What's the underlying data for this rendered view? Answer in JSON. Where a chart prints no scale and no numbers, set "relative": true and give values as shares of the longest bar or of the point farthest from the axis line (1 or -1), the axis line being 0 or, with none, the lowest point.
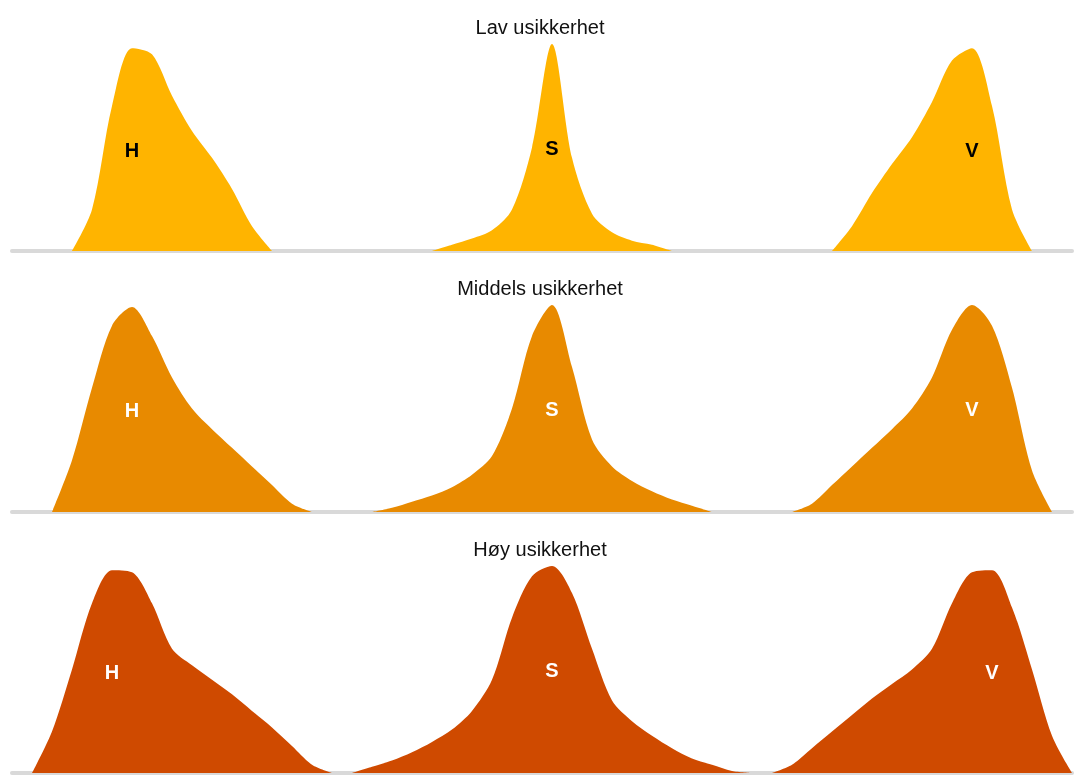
{
  "chart_data": [
    {
      "type": "area",
      "title": "Lav usikkerhet",
      "relative": true,
      "categories": [
        null,
        null,
        null,
        null,
        null,
        null,
        null,
        null,
        null,
        null,
        null,
        null,
        null,
        null,
        null,
        null,
        null,
        null,
        null,
        null,
        null,
        null,
        null,
        null,
        null,
        null,
        null,
        null,
        null,
        null,
        null,
        null,
        null,
        null,
        null,
        null,
        null,
        null,
        null,
        null,
        null,
        null,
        null,
        null,
        null,
        null,
        null,
        null,
        null,
        null,
        null,
        null,
        null,
        null
      ],
      "series": [
        {
          "name": "H",
          "color": "#ffb400",
          "values": [
            null,
            null,
            null,
            0,
            0.2,
            0.7,
            0.98,
            0.95,
            0.75,
            0.58,
            0.45,
            0.3,
            0.12,
            0,
            null,
            null,
            null,
            null,
            null,
            null,
            null,
            null,
            null,
            null,
            null,
            null,
            null,
            null,
            null,
            null,
            null,
            null,
            null,
            null,
            null,
            null,
            null,
            null,
            null,
            null,
            null,
            null,
            null,
            null,
            null,
            null,
            null,
            null,
            null,
            null,
            null,
            null,
            null,
            null
          ]
        },
        {
          "name": "S",
          "color": "#ffb400",
          "values": [
            null,
            null,
            null,
            null,
            null,
            null,
            null,
            null,
            null,
            null,
            null,
            null,
            null,
            null,
            null,
            null,
            null,
            null,
            null,
            null,
            null,
            0,
            0.03,
            0.06,
            0.1,
            0.2,
            0.5,
            1.0,
            0.45,
            0.18,
            0.09,
            0.05,
            0.03,
            0,
            null,
            null,
            null,
            null,
            null,
            null,
            null,
            null,
            null,
            null,
            null,
            null,
            null,
            null,
            null,
            null,
            null,
            null,
            null,
            null
          ]
        },
        {
          "name": "V",
          "color": "#ffb400",
          "values": [
            null,
            null,
            null,
            null,
            null,
            null,
            null,
            null,
            null,
            null,
            null,
            null,
            null,
            null,
            null,
            null,
            null,
            null,
            null,
            null,
            null,
            null,
            null,
            null,
            null,
            null,
            null,
            null,
            null,
            null,
            null,
            null,
            null,
            null,
            null,
            null,
            null,
            null,
            null,
            null,
            null,
            0,
            0.12,
            0.28,
            0.42,
            0.55,
            0.72,
            0.92,
            0.98,
            0.7,
            0.2,
            0,
            null,
            null
          ]
        }
      ]
    },
    {
      "type": "area",
      "title": "Middels usikkerhet",
      "relative": true,
      "categories": [
        null,
        null,
        null,
        null,
        null,
        null,
        null,
        null,
        null,
        null,
        null,
        null,
        null,
        null,
        null,
        null,
        null,
        null,
        null,
        null,
        null,
        null,
        null,
        null,
        null,
        null,
        null,
        null,
        null,
        null,
        null,
        null,
        null,
        null,
        null,
        null,
        null,
        null,
        null,
        null,
        null,
        null,
        null,
        null,
        null,
        null,
        null,
        null,
        null,
        null,
        null,
        null,
        null,
        null
      ],
      "series": [
        {
          "name": "H",
          "color": "#e88a00",
          "values": [
            null,
            null,
            0,
            0.25,
            0.6,
            0.9,
            0.99,
            0.85,
            0.65,
            0.5,
            0.4,
            0.31,
            0.22,
            0.13,
            0.04,
            0,
            null,
            null,
            null,
            null,
            null,
            null,
            null,
            null,
            null,
            null,
            null,
            null,
            null,
            null,
            null,
            null,
            null,
            null,
            null,
            null,
            null,
            null,
            null,
            null,
            null,
            null,
            null,
            null,
            null,
            null,
            null,
            null,
            null,
            null,
            null,
            null,
            null,
            null
          ]
        },
        {
          "name": "S",
          "color": "#e88a00",
          "values": [
            null,
            null,
            null,
            null,
            null,
            null,
            null,
            null,
            null,
            null,
            null,
            null,
            null,
            null,
            null,
            null,
            null,
            null,
            0,
            0.02,
            0.05,
            0.08,
            0.12,
            0.18,
            0.27,
            0.5,
            0.85,
            1.0,
            0.7,
            0.35,
            0.22,
            0.15,
            0.1,
            0.06,
            0.03,
            0,
            null,
            null,
            null,
            null,
            null,
            null,
            null,
            null,
            null,
            null,
            null,
            null,
            null,
            null,
            null,
            null,
            null,
            null
          ]
        },
        {
          "name": "V",
          "color": "#e88a00",
          "values": [
            null,
            null,
            null,
            null,
            null,
            null,
            null,
            null,
            null,
            null,
            null,
            null,
            null,
            null,
            null,
            null,
            null,
            null,
            null,
            null,
            null,
            null,
            null,
            null,
            null,
            null,
            null,
            null,
            null,
            null,
            null,
            null,
            null,
            null,
            null,
            null,
            null,
            null,
            null,
            0,
            0.04,
            0.13,
            0.22,
            0.31,
            0.4,
            0.5,
            0.65,
            0.88,
            1.0,
            0.9,
            0.6,
            0.2,
            0,
            null
          ]
        }
      ]
    },
    {
      "type": "area",
      "title": "Høy usikkerhet",
      "relative": true,
      "categories": [
        null,
        null,
        null,
        null,
        null,
        null,
        null,
        null,
        null,
        null,
        null,
        null,
        null,
        null,
        null,
        null,
        null,
        null,
        null,
        null,
        null,
        null,
        null,
        null,
        null,
        null,
        null,
        null,
        null,
        null,
        null,
        null,
        null,
        null,
        null,
        null,
        null,
        null,
        null,
        null,
        null,
        null,
        null,
        null,
        null,
        null,
        null,
        null,
        null,
        null,
        null,
        null,
        null,
        null
      ],
      "series": [
        {
          "name": "H",
          "color": "#cf4a00",
          "values": [
            null,
            0,
            0.2,
            0.5,
            0.82,
            0.98,
            0.97,
            0.82,
            0.6,
            0.52,
            0.45,
            0.38,
            0.3,
            0.22,
            0.13,
            0.04,
            0,
            null,
            null,
            null,
            null,
            null,
            null,
            null,
            null,
            null,
            null,
            null,
            null,
            null,
            null,
            null,
            null,
            null,
            null,
            null,
            null,
            null,
            null,
            null,
            null,
            null,
            null,
            null,
            null,
            null,
            null,
            null,
            null,
            null,
            null,
            null,
            null,
            null
          ]
        },
        {
          "name": "S",
          "color": "#cf4a00",
          "values": [
            null,
            null,
            null,
            null,
            null,
            null,
            null,
            null,
            null,
            null,
            null,
            null,
            null,
            null,
            null,
            null,
            null,
            0,
            0.03,
            0.06,
            0.1,
            0.15,
            0.21,
            0.3,
            0.45,
            0.75,
            0.95,
            1.0,
            0.87,
            0.6,
            0.35,
            0.25,
            0.18,
            0.12,
            0.07,
            0.04,
            0.01,
            0,
            null,
            null,
            null,
            null,
            null,
            null,
            null,
            null,
            null,
            null,
            null,
            null,
            null,
            null,
            null,
            null
          ]
        },
        {
          "name": "V",
          "color": "#cf4a00",
          "values": [
            null,
            null,
            null,
            null,
            null,
            null,
            null,
            null,
            null,
            null,
            null,
            null,
            null,
            null,
            null,
            null,
            null,
            null,
            null,
            null,
            null,
            null,
            null,
            null,
            null,
            null,
            null,
            null,
            null,
            null,
            null,
            null,
            null,
            null,
            null,
            null,
            null,
            null,
            0,
            0.04,
            0.12,
            0.2,
            0.28,
            0.36,
            0.43,
            0.5,
            0.6,
            0.82,
            0.97,
            0.98,
            0.8,
            0.5,
            0.18,
            0
          ]
        }
      ]
    }
  ]
}
